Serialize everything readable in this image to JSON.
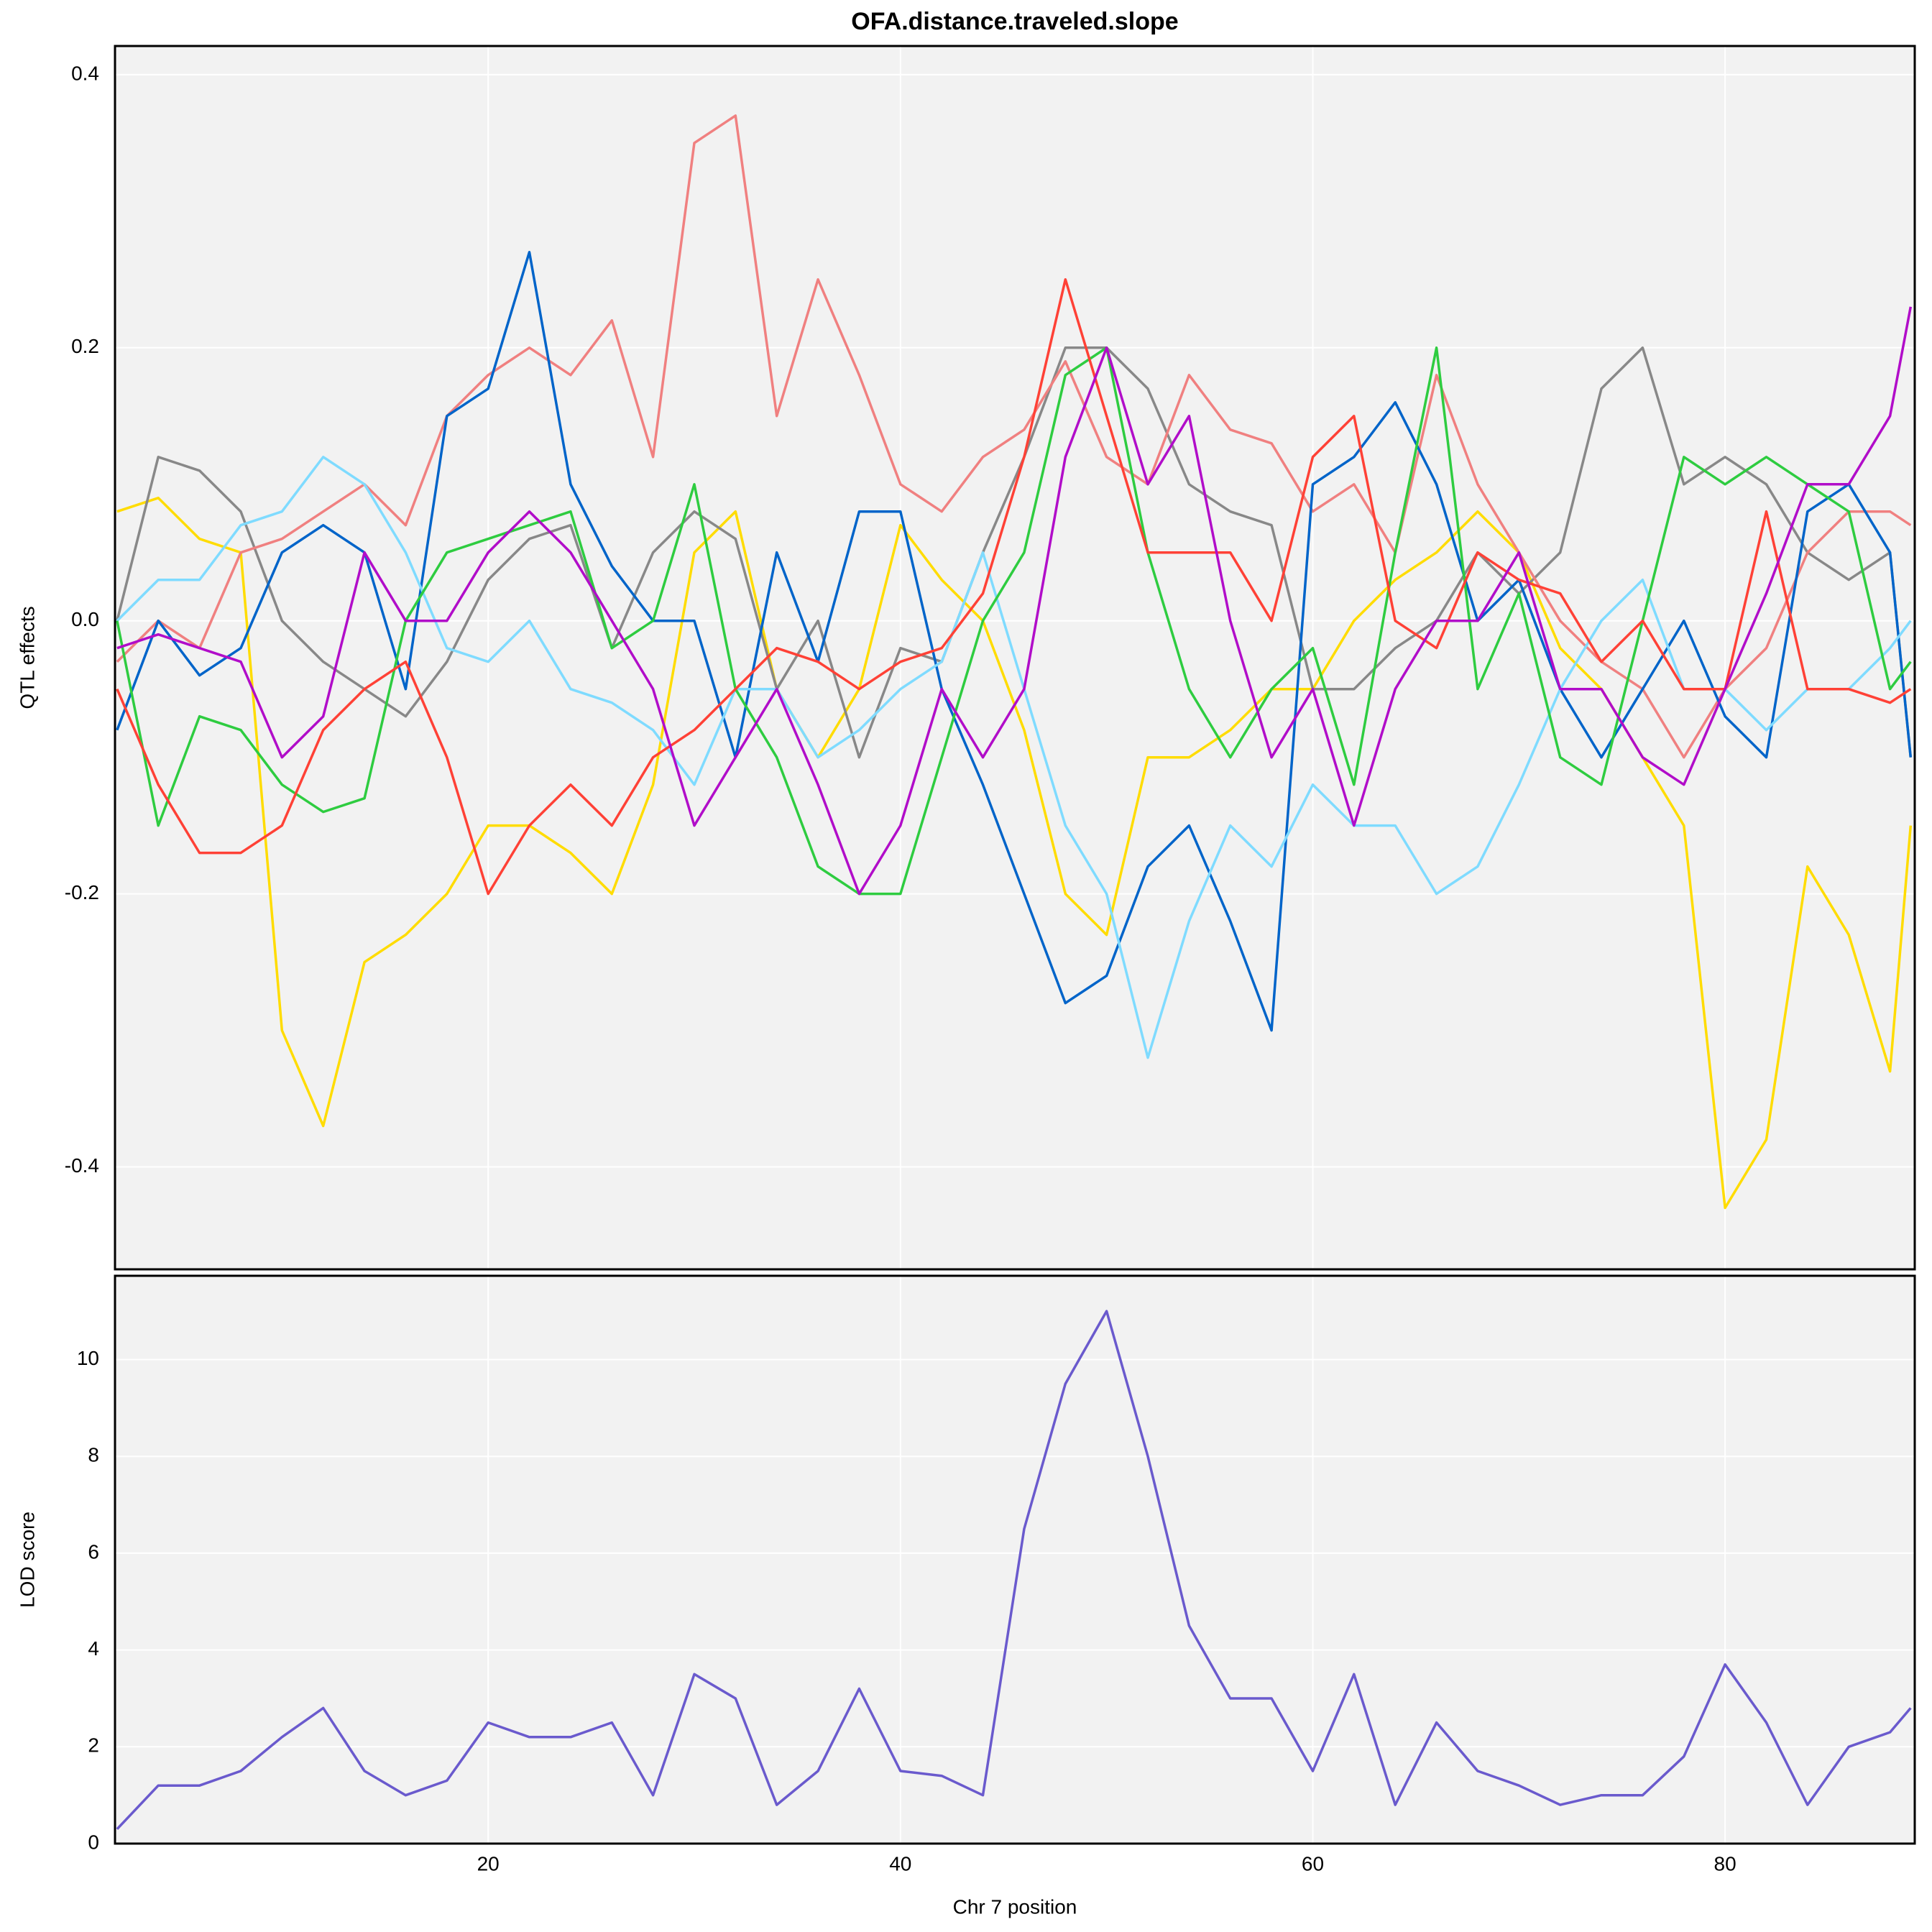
{
  "chart_data": [
    {
      "type": "line",
      "title": "OFA.distance.traveled.slope",
      "ylabel": "QTL effects",
      "x": [
        2,
        4,
        6,
        8,
        10,
        12,
        14,
        16,
        18,
        20,
        22,
        24,
        26,
        28,
        30,
        32,
        34,
        36,
        38,
        40,
        42,
        44,
        46,
        48,
        50,
        52,
        54,
        56,
        58,
        60,
        62,
        64,
        66,
        68,
        70,
        72,
        74,
        76,
        78,
        80,
        82,
        84,
        86,
        88,
        89
      ],
      "xlim": [
        1.9,
        89.2
      ],
      "ylim": [
        -0.475,
        0.421
      ],
      "yticks": [
        -0.4,
        -0.2,
        {
          "value": 0,
          "label": "0.0"
        },
        0.2,
        0.4
      ],
      "grid": true,
      "series": [
        {
          "color": "#FFDC00",
          "values": [
            0.08,
            0.09,
            0.06,
            0.05,
            -0.3,
            -0.37,
            -0.25,
            -0.23,
            -0.2,
            -0.15,
            -0.15,
            -0.17,
            -0.2,
            -0.12,
            0.05,
            0.08,
            -0.05,
            -0.1,
            -0.05,
            0.07,
            0.03,
            0.0,
            -0.08,
            -0.2,
            -0.23,
            -0.1,
            -0.1,
            -0.08,
            -0.05,
            -0.05,
            0.0,
            0.03,
            0.05,
            0.08,
            0.05,
            -0.02,
            -0.05,
            -0.1,
            -0.15,
            -0.43,
            -0.38,
            -0.18,
            -0.23,
            -0.33,
            -0.15
          ]
        },
        {
          "color": "#888888",
          "values": [
            0.0,
            0.12,
            0.11,
            0.08,
            0.0,
            -0.03,
            -0.05,
            -0.07,
            -0.03,
            0.03,
            0.06,
            0.07,
            -0.02,
            0.05,
            0.08,
            0.06,
            -0.05,
            0.0,
            -0.1,
            -0.02,
            -0.03,
            0.05,
            0.12,
            0.2,
            0.2,
            0.17,
            0.1,
            0.08,
            0.07,
            -0.05,
            -0.05,
            -0.02,
            0.0,
            0.05,
            0.02,
            0.05,
            0.17,
            0.2,
            0.1,
            0.12,
            0.1,
            0.05,
            0.03,
            0.05,
            -0.1
          ]
        },
        {
          "color": "#F08080",
          "values": [
            -0.03,
            0.0,
            -0.02,
            0.05,
            0.06,
            0.08,
            0.1,
            0.07,
            0.15,
            0.18,
            0.2,
            0.18,
            0.22,
            0.12,
            0.35,
            0.37,
            0.15,
            0.25,
            0.18,
            0.1,
            0.08,
            0.12,
            0.14,
            0.19,
            0.12,
            0.1,
            0.18,
            0.14,
            0.13,
            0.08,
            0.1,
            0.05,
            0.18,
            0.1,
            0.05,
            0.0,
            -0.03,
            -0.05,
            -0.1,
            -0.05,
            -0.02,
            0.05,
            0.08,
            0.08,
            0.07
          ]
        },
        {
          "color": "#0064C9",
          "values": [
            -0.08,
            0.0,
            -0.04,
            -0.02,
            0.05,
            0.07,
            0.05,
            -0.05,
            0.15,
            0.17,
            0.27,
            0.1,
            0.04,
            0.0,
            0.0,
            -0.1,
            0.05,
            -0.03,
            0.08,
            0.08,
            -0.05,
            -0.12,
            -0.2,
            -0.28,
            -0.26,
            -0.18,
            -0.15,
            -0.22,
            -0.3,
            0.1,
            0.12,
            0.16,
            0.1,
            0.0,
            0.03,
            -0.05,
            -0.1,
            -0.05,
            0.0,
            -0.07,
            -0.1,
            0.08,
            0.1,
            0.05,
            -0.1
          ]
        },
        {
          "color": "#7FDBFF",
          "values": [
            0.0,
            0.03,
            0.03,
            0.07,
            0.08,
            0.12,
            0.1,
            0.05,
            -0.02,
            -0.03,
            0.0,
            -0.05,
            -0.06,
            -0.08,
            -0.12,
            -0.05,
            -0.05,
            -0.1,
            -0.08,
            -0.05,
            -0.03,
            0.05,
            -0.05,
            -0.15,
            -0.2,
            -0.32,
            -0.22,
            -0.15,
            -0.18,
            -0.12,
            -0.15,
            -0.15,
            -0.2,
            -0.18,
            -0.12,
            -0.05,
            0.0,
            0.03,
            -0.05,
            -0.05,
            -0.08,
            -0.05,
            -0.05,
            -0.02,
            0.0
          ]
        },
        {
          "color": "#2ECC40",
          "values": [
            0.0,
            -0.15,
            -0.07,
            -0.08,
            -0.12,
            -0.14,
            -0.13,
            0.0,
            0.05,
            0.06,
            0.07,
            0.08,
            -0.02,
            0.0,
            0.1,
            -0.05,
            -0.1,
            -0.18,
            -0.2,
            -0.2,
            -0.1,
            0.0,
            0.05,
            0.18,
            0.2,
            0.05,
            -0.05,
            -0.1,
            -0.05,
            -0.02,
            -0.12,
            0.05,
            0.2,
            -0.05,
            0.02,
            -0.1,
            -0.12,
            0.0,
            0.12,
            0.1,
            0.12,
            0.1,
            0.08,
            -0.05,
            -0.03
          ]
        },
        {
          "color": "#FF4136",
          "values": [
            -0.05,
            -0.12,
            -0.17,
            -0.17,
            -0.15,
            -0.08,
            -0.05,
            -0.03,
            -0.1,
            -0.2,
            -0.15,
            -0.12,
            -0.15,
            -0.1,
            -0.08,
            -0.05,
            -0.02,
            -0.03,
            -0.05,
            -0.03,
            -0.02,
            0.02,
            0.12,
            0.25,
            0.15,
            0.05,
            0.05,
            0.05,
            0.0,
            0.12,
            0.15,
            0.0,
            -0.02,
            0.05,
            0.03,
            0.02,
            -0.03,
            0.0,
            -0.05,
            -0.05,
            0.08,
            -0.05,
            -0.05,
            -0.06,
            -0.05
          ]
        },
        {
          "color": "#B10DC9",
          "values": [
            -0.02,
            -0.01,
            -0.02,
            -0.03,
            -0.1,
            -0.07,
            0.05,
            0.0,
            0.0,
            0.05,
            0.08,
            0.05,
            0.0,
            -0.05,
            -0.15,
            -0.1,
            -0.05,
            -0.12,
            -0.2,
            -0.15,
            -0.05,
            -0.1,
            -0.05,
            0.12,
            0.2,
            0.1,
            0.15,
            0.0,
            -0.1,
            -0.05,
            -0.15,
            -0.05,
            0.0,
            0.0,
            0.05,
            -0.05,
            -0.05,
            -0.1,
            -0.12,
            -0.05,
            0.02,
            0.1,
            0.1,
            0.15,
            0.23
          ]
        }
      ]
    },
    {
      "type": "line",
      "ylabel": "LOD score",
      "xlabel": "Chr 7 position",
      "x": [
        2,
        4,
        6,
        8,
        10,
        12,
        14,
        16,
        18,
        20,
        22,
        24,
        26,
        28,
        30,
        32,
        34,
        36,
        38,
        40,
        42,
        44,
        46,
        48,
        50,
        52,
        54,
        56,
        58,
        60,
        62,
        64,
        66,
        68,
        70,
        72,
        74,
        76,
        78,
        80,
        82,
        84,
        86,
        88,
        89
      ],
      "xlim": [
        1.9,
        89.2
      ],
      "xticks": [
        20,
        40,
        60,
        80
      ],
      "ylim": [
        0,
        11.73
      ],
      "yticks": [
        0,
        2,
        4,
        6,
        8,
        10
      ],
      "grid": true,
      "series": [
        {
          "color": "#6A5ACD",
          "values": [
            0.3,
            1.2,
            1.2,
            1.5,
            2.2,
            2.8,
            1.5,
            1.0,
            1.3,
            2.5,
            2.2,
            2.2,
            2.5,
            1.0,
            3.5,
            3.0,
            0.8,
            1.5,
            3.2,
            1.5,
            1.4,
            1.0,
            6.5,
            9.5,
            11.0,
            8.0,
            4.5,
            3.0,
            3.0,
            1.5,
            3.5,
            0.8,
            2.5,
            1.5,
            1.2,
            0.8,
            1.0,
            1.0,
            1.8,
            3.7,
            2.5,
            0.8,
            2.0,
            2.3,
            2.8
          ]
        }
      ]
    }
  ]
}
